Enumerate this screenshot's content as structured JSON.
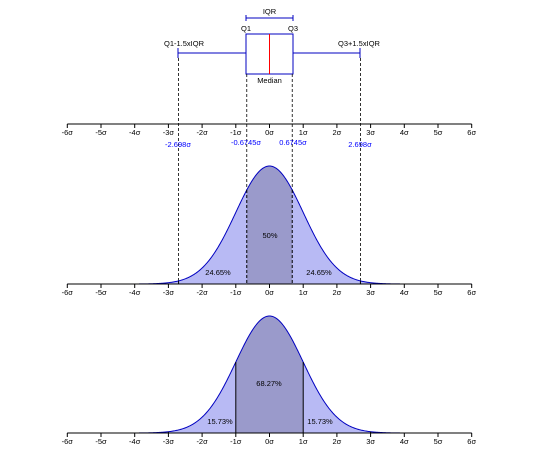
{
  "box_plot": {
    "iqr_label": "IQR",
    "q1_label": "Q1",
    "q3_label": "Q3",
    "median_label": "Median",
    "lower_whisker_label": "Q1-1.5xIQR",
    "upper_whisker_label": "Q3+1.5xIQR",
    "q1_value": -0.6745,
    "q3_value": 0.6745,
    "median_value": 0,
    "lower_whisker_value": -2.698,
    "upper_whisker_value": 2.698,
    "marker_labels": [
      "-2.698σ",
      "-0.6745σ",
      "0.6745σ",
      "2.698σ"
    ]
  },
  "axis": {
    "sigma": "σ",
    "range": [
      -6,
      6
    ],
    "tick_labels": [
      "-6σ",
      "-5σ",
      "-4σ",
      "-3σ",
      "-2σ",
      "-1σ",
      "0σ",
      "1σ",
      "2σ",
      "3σ",
      "4σ",
      "5σ",
      "6σ"
    ]
  },
  "panel_quartiles": {
    "center_pct": "50%",
    "left_pct": "24.65%",
    "right_pct": "24.65%",
    "shade_range": [
      -0.6745,
      0.6745
    ],
    "tail_range": [
      -2.698,
      2.698
    ]
  },
  "panel_sigma": {
    "center_pct": "68.27%",
    "left_pct": "15.73%",
    "right_pct": "15.73%",
    "shade_range": [
      -1,
      1
    ],
    "tail_range": [
      -3,
      3
    ]
  },
  "colors": {
    "curve_fill": "#b8baf4",
    "curve_stroke": "#0000c0",
    "center_fill": "#9a9acb",
    "median_line": "#ff0000",
    "box_stroke": "#0000c0",
    "blue_text": "#0000ff"
  }
}
